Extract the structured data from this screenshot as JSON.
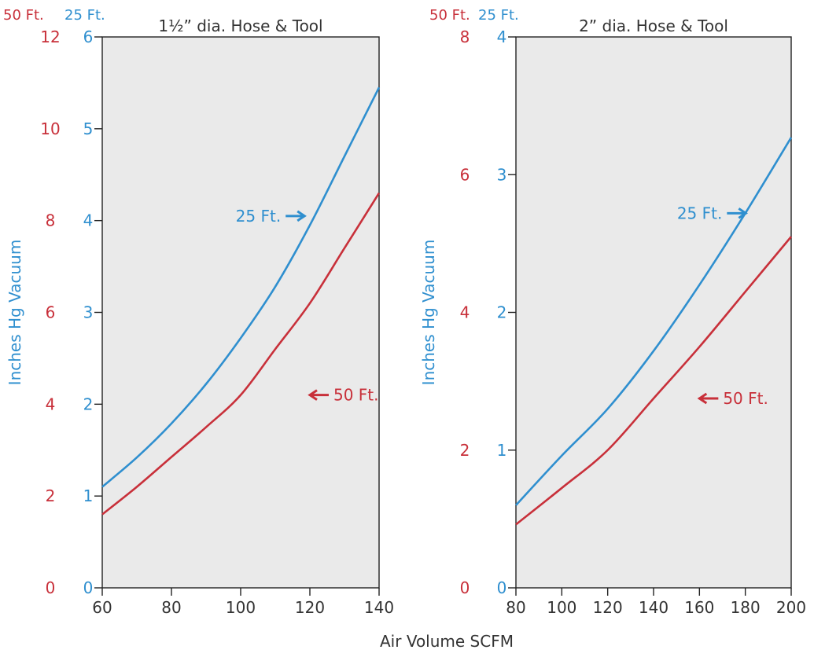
{
  "figure": {
    "xlabel": "Air Volume SCFM",
    "colors": {
      "red": "#c8303a",
      "blue": "#2f8fcf",
      "text": "#333333",
      "plot_bg": "#eaeaea",
      "axis": "#222222"
    }
  },
  "chart_data": [
    {
      "type": "line",
      "title": "1½” dia. Hose & Tool",
      "ylabel": "Inches Hg Vacuum",
      "axis_header_50": "50 Ft.",
      "axis_header_25": "25 Ft.",
      "xlim": [
        60,
        140
      ],
      "xticks": [
        60,
        80,
        100,
        120,
        140
      ],
      "ylim_25ft": [
        0,
        6
      ],
      "yticks_25ft": [
        0,
        1,
        2,
        3,
        4,
        5,
        6
      ],
      "ylim_50ft": [
        0,
        12
      ],
      "yticks_50ft": [
        0,
        2,
        4,
        6,
        8,
        10,
        12
      ],
      "series": [
        {
          "name": "25 Ft.",
          "color": "#2f8fcf",
          "axis": "25ft",
          "x": [
            60,
            70,
            80,
            90,
            100,
            110,
            120,
            130,
            140
          ],
          "y": [
            1.1,
            1.42,
            1.79,
            2.22,
            2.72,
            3.28,
            3.95,
            4.7,
            5.45
          ]
        },
        {
          "name": "50 Ft.",
          "color": "#c8303a",
          "axis": "50ft",
          "x": [
            60,
            70,
            80,
            90,
            100,
            110,
            120,
            130,
            140
          ],
          "y": [
            1.6,
            2.2,
            2.85,
            3.5,
            4.2,
            5.2,
            6.2,
            7.4,
            8.6
          ]
        }
      ],
      "annotations": [
        {
          "text": "25 Ft.",
          "arrow": "right",
          "color": "#2f8fcf",
          "x": 113,
          "y_axis": "25ft",
          "y": 4.05
        },
        {
          "text": "50 Ft.",
          "arrow": "left",
          "color": "#c8303a",
          "x": 120,
          "y_axis": "50ft",
          "y": 4.2
        }
      ]
    },
    {
      "type": "line",
      "title": "2” dia. Hose & Tool",
      "ylabel": "Inches Hg Vacuum",
      "axis_header_50": "50 Ft.",
      "axis_header_25": "25 Ft.",
      "xlim": [
        80,
        200
      ],
      "xticks": [
        80,
        100,
        120,
        140,
        160,
        180,
        200
      ],
      "ylim_25ft": [
        0,
        4
      ],
      "yticks_25ft": [
        0,
        1,
        2,
        3,
        4
      ],
      "ylim_50ft": [
        0,
        8
      ],
      "yticks_50ft": [
        0,
        2,
        4,
        6,
        8
      ],
      "series": [
        {
          "name": "25 Ft.",
          "color": "#2f8fcf",
          "axis": "25ft",
          "x": [
            80,
            100,
            120,
            140,
            160,
            180,
            200
          ],
          "y": [
            0.6,
            0.96,
            1.3,
            1.72,
            2.2,
            2.72,
            3.27
          ]
        },
        {
          "name": "50 Ft.",
          "color": "#c8303a",
          "axis": "50ft",
          "x": [
            80,
            100,
            120,
            140,
            160,
            180,
            200
          ],
          "y": [
            0.92,
            1.45,
            2.0,
            2.75,
            3.5,
            4.3,
            5.1
          ]
        }
      ],
      "annotations": [
        {
          "text": "25 Ft.",
          "arrow": "right",
          "color": "#2f8fcf",
          "x": 172,
          "y_axis": "25ft",
          "y": 2.72
        },
        {
          "text": "50 Ft.",
          "arrow": "left",
          "color": "#c8303a",
          "x": 160,
          "y_axis": "50ft",
          "y": 2.75
        }
      ]
    }
  ]
}
